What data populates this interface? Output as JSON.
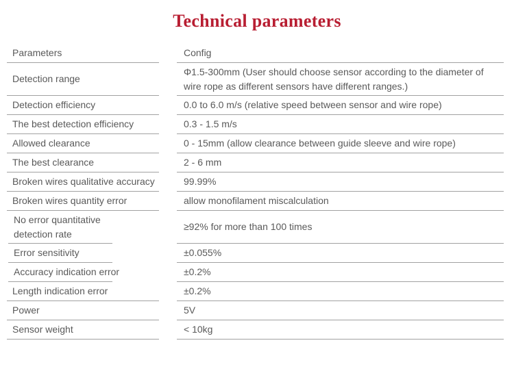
{
  "title": "Technical parameters",
  "colors": {
    "title": "#b81e32",
    "text": "#595959",
    "line": "#a1a1a1",
    "background": "#ffffff"
  },
  "table": {
    "header": {
      "param": "Parameters",
      "config": "Config"
    },
    "rows": [
      {
        "param": "Detection range",
        "config": "Φ1.5-300mm (User should choose sensor according to the diameter of wire rope as different sensors have different ranges.)"
      },
      {
        "param": "Detection efficiency",
        "config": "0.0 to 6.0 m/s (relative speed between sensor and wire rope)"
      },
      {
        "param": "The best detection efficiency",
        "config": "0.3 - 1.5 m/s"
      },
      {
        "param": "Allowed clearance",
        "config": "0 - 15mm (allow clearance between guide sleeve and wire rope)"
      },
      {
        "param": "The best clearance",
        "config": "2 - 6 mm"
      },
      {
        "param": "Broken wires qualitative accuracy",
        "config": "99.99%"
      },
      {
        "param": "Broken wires quantity error",
        "config": "allow monofilament miscalculation"
      },
      {
        "param": "No error quantitative detection rate",
        "config": "≥92% for more than 100 times"
      },
      {
        "param": "Error sensitivity",
        "config": "±0.055%"
      },
      {
        "param": "Accuracy indication error",
        "config": "±0.2%"
      },
      {
        "param": "Length indication error",
        "config": "±0.2%"
      },
      {
        "param": "Power",
        "config": "5V"
      },
      {
        "param": "Sensor weight",
        "config": "< 10kg"
      }
    ]
  }
}
